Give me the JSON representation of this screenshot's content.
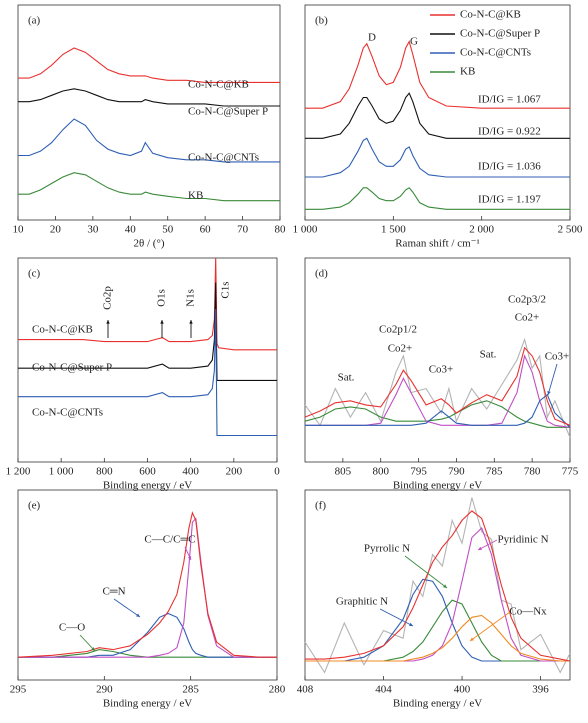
{
  "chart_data": [
    {
      "type": "line",
      "label": "(a)",
      "x_label": "2θ / (°)",
      "xlim": [
        10,
        80
      ],
      "ylim": [
        0,
        100
      ],
      "xticks": [
        10,
        20,
        30,
        40,
        50,
        60,
        70,
        80
      ],
      "legend": "inline",
      "x": [
        10,
        13,
        16,
        19,
        22,
        25,
        28,
        31,
        34,
        37,
        40,
        43,
        44,
        46,
        50,
        55,
        60,
        65,
        70,
        75,
        80
      ],
      "series": [
        {
          "name": "Co-N-C@KB",
          "color": "#e8312f",
          "values": [
            66,
            66,
            68,
            72,
            77,
            80,
            78,
            74,
            70,
            68,
            67,
            67,
            67,
            66,
            65,
            65,
            64,
            64,
            64,
            64,
            64
          ]
        },
        {
          "name": "Co-N-C@Super P",
          "color": "#111111",
          "values": [
            55,
            55,
            56,
            58,
            60,
            61,
            60,
            58,
            56,
            55,
            55,
            55,
            56,
            55,
            54,
            54,
            54,
            53,
            53,
            53,
            53
          ]
        },
        {
          "name": "Co-N-C@CNTs",
          "color": "#2f5fb3",
          "values": [
            30,
            30,
            32,
            36,
            42,
            47,
            44,
            37,
            33,
            31,
            30,
            32,
            36,
            31,
            29,
            28,
            28,
            27,
            27,
            27,
            27
          ]
        },
        {
          "name": "KB",
          "color": "#3a8a3a",
          "values": [
            12,
            12,
            14,
            17,
            20,
            22,
            21,
            18,
            15,
            13,
            12,
            12,
            13,
            12,
            11,
            10,
            10,
            9,
            9,
            9,
            9
          ]
        }
      ]
    },
    {
      "type": "line",
      "label": "(b)",
      "x_label": "Raman shift / cm⁻¹",
      "xlim": [
        1000,
        2500
      ],
      "ylim": [
        0,
        100
      ],
      "xticks": [
        {
          "value": 1000,
          "label": "1 000"
        },
        {
          "value": 1500,
          "label": "1 500"
        },
        {
          "value": 2000,
          "label": "2 000"
        },
        {
          "value": 2500,
          "label": "2 500"
        }
      ],
      "legend": "upper right",
      "x": [
        1000,
        1100,
        1200,
        1250,
        1300,
        1330,
        1350,
        1380,
        1420,
        1460,
        1500,
        1540,
        1570,
        1590,
        1610,
        1650,
        1700,
        1800,
        2000,
        2200,
        2400,
        2500
      ],
      "series": [
        {
          "name": "Co-N-C@KB",
          "color": "#e8312f",
          "values": [
            52,
            52,
            55,
            61,
            72,
            80,
            82,
            76,
            67,
            63,
            64,
            71,
            80,
            83,
            77,
            64,
            57,
            53,
            52,
            52,
            52,
            52
          ]
        },
        {
          "name": "Co-N-C@Super P",
          "color": "#111111",
          "values": [
            38,
            38,
            40,
            45,
            53,
            57,
            57,
            53,
            47,
            45,
            46,
            51,
            57,
            59,
            55,
            45,
            40,
            38,
            38,
            38,
            38,
            38
          ]
        },
        {
          "name": "Co-N-C@CNTs",
          "color": "#2f5fb3",
          "values": [
            20,
            20,
            22,
            25,
            32,
            37,
            38,
            33,
            27,
            25,
            25,
            28,
            33,
            34,
            30,
            24,
            21,
            20,
            20,
            20,
            20,
            20
          ]
        },
        {
          "name": "KB",
          "color": "#3a8a3a",
          "values": [
            5,
            5,
            6,
            8,
            12,
            15,
            15,
            13,
            10,
            9,
            9,
            11,
            14,
            15,
            13,
            8,
            6,
            5,
            5,
            5,
            5,
            5
          ]
        }
      ],
      "annotations": [
        "D",
        "G",
        "ID/IG = 1.067",
        "ID/IG = 0.922",
        "ID/IG = 1.036",
        "ID/IG = 1.197"
      ]
    },
    {
      "type": "line",
      "label": "(c)",
      "x_label": "Binding energy / eV",
      "xlim": [
        1200,
        0
      ],
      "ylim": [
        0,
        100
      ],
      "xticks": [
        {
          "value": 1200,
          "label": "1 200"
        },
        {
          "value": 1000,
          "label": "1 000"
        },
        800,
        600,
        400,
        200,
        0
      ],
      "legend": "inline",
      "x": [
        1200,
        1000,
        900,
        800,
        780,
        700,
        600,
        531,
        500,
        400,
        320,
        300,
        290,
        284,
        278,
        270,
        200,
        100,
        0
      ],
      "series": [
        {
          "name": "Co-N-C@KB",
          "color": "#e8312f",
          "values": [
            60,
            60,
            60,
            59,
            59,
            59,
            59,
            61,
            59,
            59,
            60,
            62,
            70,
            100,
            58,
            56,
            55,
            55,
            55
          ]
        },
        {
          "name": "Co-N-C@Super P",
          "color": "#111111",
          "values": [
            46,
            46,
            46,
            46,
            46,
            46,
            46,
            48,
            46,
            46,
            47,
            50,
            60,
            88,
            40,
            40,
            40,
            40,
            40
          ]
        },
        {
          "name": "Co-N-C@CNTs",
          "color": "#2f5fb3",
          "values": [
            32,
            32,
            32,
            32,
            32,
            32,
            32,
            34,
            32,
            32,
            33,
            36,
            45,
            75,
            13,
            13,
            13,
            13,
            13
          ]
        }
      ],
      "annotations": [
        "Co2p",
        "O1s",
        "N1s",
        "C1s"
      ]
    },
    {
      "type": "line",
      "label": "(d)",
      "x_label": "Binding energy / eV",
      "xlim": [
        810,
        775
      ],
      "ylim": [
        0,
        100
      ],
      "xticks": [
        805,
        800,
        795,
        790,
        785,
        780,
        775
      ],
      "x": [
        810,
        808,
        806,
        804,
        802,
        800,
        798,
        797,
        796,
        794,
        792,
        791,
        790,
        788,
        786,
        784,
        782,
        781,
        780,
        779,
        778,
        777,
        775
      ],
      "series": [
        {
          "color": "#b4b4b4",
          "values": [
            28,
            18,
            36,
            22,
            34,
            20,
            44,
            52,
            34,
            36,
            24,
            36,
            20,
            36,
            26,
            38,
            50,
            60,
            46,
            52,
            22,
            30,
            12
          ]
        },
        {
          "color": "#3a8a3a",
          "values": [
            20,
            22,
            26,
            27,
            26,
            22,
            20,
            20,
            20,
            20,
            21,
            22,
            24,
            28,
            30,
            27,
            22,
            20,
            19,
            18,
            17,
            17,
            17
          ]
        },
        {
          "color": "#c04fc4",
          "values": [
            18,
            18,
            18,
            18,
            18,
            19,
            33,
            41,
            34,
            20,
            18,
            18,
            18,
            18,
            18,
            19,
            34,
            52,
            44,
            30,
            20,
            18,
            17
          ]
        },
        {
          "color": "#2f5fb3",
          "values": [
            18,
            18,
            18,
            18,
            18,
            18,
            18,
            18,
            18,
            19,
            25,
            22,
            19,
            18,
            18,
            18,
            18,
            19,
            22,
            30,
            33,
            24,
            17
          ]
        },
        {
          "color": "#e8312f",
          "values": [
            22,
            25,
            29,
            30,
            28,
            27,
            38,
            45,
            40,
            28,
            31,
            28,
            24,
            29,
            33,
            30,
            42,
            56,
            52,
            44,
            30,
            21,
            18
          ]
        }
      ],
      "annotations": [
        "Sat.",
        "Co2p1/2",
        "Co2+",
        "Co3+",
        "Sat.",
        "Co2p3/2",
        "Co2+",
        "Co3+"
      ]
    },
    {
      "type": "line",
      "label": "(e)",
      "x_label": "Binding energy / eV",
      "xlim": [
        295,
        280
      ],
      "ylim": [
        0,
        100
      ],
      "xticks": [
        295,
        290,
        285,
        280
      ],
      "x": [
        295,
        293,
        291,
        290.3,
        289.5,
        288.5,
        287.5,
        286.8,
        286.3,
        285.8,
        285.4,
        285.1,
        284.9,
        284.7,
        284.4,
        284,
        283.5,
        282.5,
        281,
        280
      ],
      "series": [
        {
          "color": "#3a8a3a",
          "values": [
            12,
            12,
            14,
            16,
            15,
            13,
            12,
            12,
            12,
            12,
            12,
            12,
            12,
            12,
            12,
            12,
            12,
            12,
            12,
            12
          ]
        },
        {
          "color": "#2f5fb3",
          "values": [
            12,
            12,
            12,
            13,
            13,
            16,
            25,
            33,
            35,
            33,
            27,
            20,
            16,
            14,
            13,
            12,
            12,
            12,
            12,
            12
          ]
        },
        {
          "color": "#c04fc4",
          "values": [
            12,
            12,
            12,
            12,
            12,
            12,
            12,
            13,
            14,
            17,
            30,
            60,
            83,
            85,
            62,
            34,
            18,
            12,
            12,
            12
          ]
        },
        {
          "color": "#e8312f",
          "values": [
            12,
            13,
            15,
            17,
            16,
            18,
            24,
            30,
            36,
            45,
            62,
            80,
            88,
            84,
            60,
            35,
            20,
            13,
            12,
            12
          ]
        }
      ],
      "annotations": [
        "C—C/C═C",
        "C═N",
        "C—O"
      ]
    },
    {
      "type": "line",
      "label": "(f)",
      "x_label": "Binding energy / eV",
      "xlim": [
        408,
        394.5
      ],
      "ylim": [
        0,
        100
      ],
      "xticks": [
        408,
        404,
        400,
        396
      ],
      "x": [
        408,
        407,
        406,
        405,
        404,
        403,
        402.5,
        402,
        401.5,
        401,
        400.5,
        400,
        399.5,
        399,
        398.5,
        398,
        397.5,
        397,
        396,
        395,
        394.5
      ],
      "series": [
        {
          "color": "#b4b4b4",
          "values": [
            20,
            4,
            30,
            8,
            26,
            22,
            52,
            44,
            66,
            60,
            84,
            72,
            96,
            78,
            74,
            42,
            40,
            16,
            24,
            4,
            14
          ]
        },
        {
          "color": "#2f5fb3",
          "values": [
            10,
            10,
            10,
            12,
            18,
            32,
            45,
            53,
            52,
            44,
            30,
            18,
            12,
            10,
            10,
            10,
            10,
            10,
            10,
            10,
            10
          ]
        },
        {
          "color": "#3a8a3a",
          "values": [
            10,
            10,
            10,
            10,
            10,
            12,
            15,
            20,
            28,
            36,
            42,
            40,
            30,
            20,
            13,
            10,
            10,
            10,
            10,
            10,
            10
          ]
        },
        {
          "color": "#c04fc4",
          "values": [
            10,
            10,
            10,
            10,
            10,
            10,
            10,
            11,
            13,
            18,
            30,
            52,
            75,
            80,
            66,
            42,
            22,
            13,
            10,
            10,
            10
          ]
        },
        {
          "color": "#f08a24",
          "values": [
            10,
            10,
            10,
            10,
            10,
            10,
            11,
            12,
            14,
            17,
            22,
            28,
            33,
            34,
            30,
            24,
            18,
            14,
            11,
            10,
            10
          ]
        },
        {
          "color": "#e8312f",
          "values": [
            11,
            11,
            12,
            14,
            18,
            28,
            38,
            50,
            62,
            70,
            76,
            84,
            89,
            85,
            70,
            50,
            33,
            22,
            13,
            11,
            10
          ]
        }
      ],
      "annotations": [
        "Pyrrolic N",
        "Graphitic N",
        "Pyridinic N",
        "Co—Nx"
      ]
    }
  ]
}
